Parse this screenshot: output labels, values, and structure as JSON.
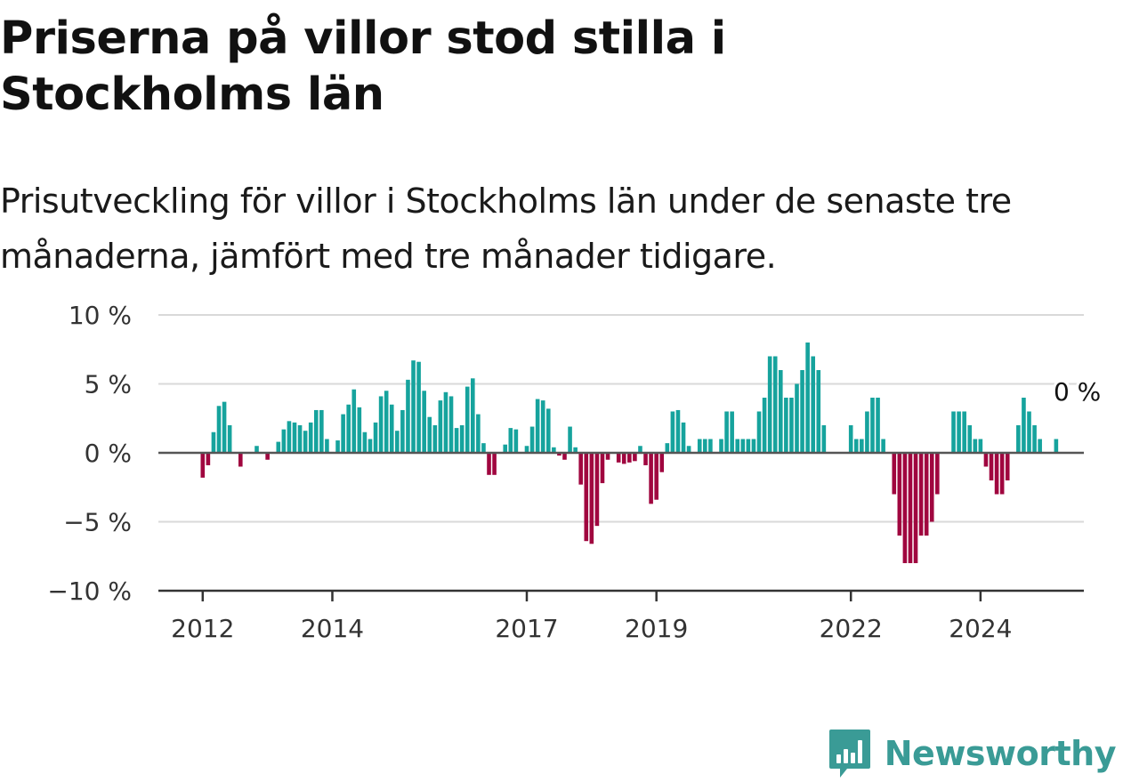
{
  "header": {
    "title": "Priserna på villor stod stilla i Stockholms län",
    "subtitle": "Prisutveckling för villor i Stockholms län under de senaste tre månaderna, jämfört med tre månader tidigare."
  },
  "brand": {
    "name": "Newsworthy",
    "color": "#3a9b96"
  },
  "colors": {
    "positive": "#16a39d",
    "negative": "#a0063f",
    "grid": "#d9d9d9",
    "zero_line": "#555555"
  },
  "chart_data": {
    "type": "bar",
    "title": "Priserna på villor stod stilla i Stockholms län",
    "subtitle": "Prisutveckling för villor i Stockholms län under de senaste tre månaderna, jämfört med tre månader tidigare.",
    "xlabel": "",
    "ylabel": "",
    "unit": "%",
    "ylim": [
      -10,
      10
    ],
    "yticks": [
      {
        "value": 10,
        "label": "10 %"
      },
      {
        "value": 5,
        "label": "5 %"
      },
      {
        "value": 0,
        "label": "0 %"
      },
      {
        "value": -5,
        "label": "−5 %"
      },
      {
        "value": -10,
        "label": "−10 %"
      }
    ],
    "xticks": [
      {
        "label": "2012",
        "date": "2012-01"
      },
      {
        "label": "2014",
        "date": "2014-01"
      },
      {
        "label": "2017",
        "date": "2017-01"
      },
      {
        "label": "2019",
        "date": "2019-01"
      },
      {
        "label": "2022",
        "date": "2022-01"
      },
      {
        "label": "2024",
        "date": "2024-01"
      }
    ],
    "grid": true,
    "last_value_label": "0 %",
    "start_month": "2011-01",
    "values": [
      null,
      null,
      null,
      null,
      null,
      null,
      null,
      null,
      null,
      null,
      null,
      null,
      -1.8,
      -0.9,
      1.5,
      3.4,
      3.7,
      2.0,
      null,
      -1.0,
      null,
      null,
      0.5,
      0.0,
      -0.5,
      0.0,
      0.8,
      1.7,
      2.3,
      2.2,
      2.0,
      1.6,
      2.2,
      3.1,
      3.1,
      1.0,
      null,
      0.9,
      2.8,
      3.5,
      4.6,
      3.3,
      1.5,
      1.0,
      2.2,
      4.1,
      4.5,
      3.5,
      1.6,
      3.1,
      5.3,
      6.7,
      6.6,
      4.5,
      2.6,
      2.0,
      3.8,
      4.4,
      4.1,
      1.8,
      2.0,
      4.8,
      5.4,
      2.8,
      0.7,
      -1.6,
      -1.6,
      0.0,
      0.6,
      1.8,
      1.7,
      0.0,
      0.5,
      1.9,
      3.9,
      3.8,
      3.2,
      0.4,
      -0.2,
      -0.5,
      1.9,
      0.4,
      -2.3,
      -6.4,
      -6.6,
      -5.3,
      -2.2,
      -0.5,
      0.0,
      -0.7,
      -0.8,
      -0.7,
      -0.6,
      0.5,
      -0.9,
      -3.7,
      -3.4,
      -1.4,
      0.7,
      3.0,
      3.1,
      2.2,
      0.5,
      0.0,
      1.0,
      1.0,
      1.0,
      0.0,
      1.0,
      3.0,
      3.0,
      1.0,
      1.0,
      1.0,
      1.0,
      3.0,
      4.0,
      7.0,
      7.0,
      6.0,
      4.0,
      4.0,
      5.0,
      6.0,
      8.0,
      7.0,
      6.0,
      2.0,
      null,
      null,
      null,
      null,
      2.0,
      1.0,
      1.0,
      3.0,
      4.0,
      4.0,
      1.0,
      0.0,
      -3.0,
      -6.0,
      -8.0,
      -8.0,
      -8.0,
      -6.0,
      -6.0,
      -5.0,
      -3.0,
      0.0,
      0.0,
      3.0,
      3.0,
      3.0,
      2.0,
      1.0,
      1.0,
      -1.0,
      -2.0,
      -3.0,
      -3.0,
      -2.0,
      0.0,
      2.0,
      4.0,
      3.0,
      2.0,
      1.0,
      0.0,
      0.0,
      1.0,
      0.0
    ]
  }
}
